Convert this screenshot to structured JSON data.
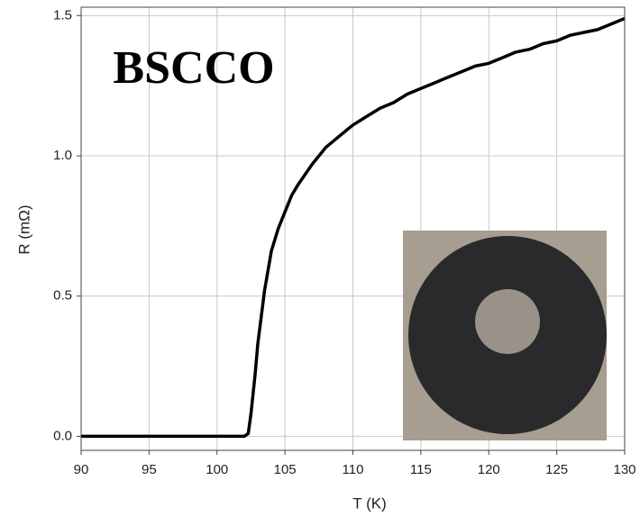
{
  "chart_data": {
    "type": "line",
    "annotation": "BSCCO",
    "x_label": "T (K)",
    "y_label": "R (mΩ)",
    "x": [
      90,
      92,
      94,
      96,
      98,
      100,
      102,
      102.3,
      102.5,
      102.8,
      103,
      103.5,
      104,
      104.5,
      105,
      105.5,
      106,
      107,
      108,
      109,
      110,
      111,
      112,
      113,
      114,
      115,
      116,
      117,
      118,
      119,
      120,
      121,
      122,
      123,
      124,
      125,
      126,
      127,
      128,
      129,
      130
    ],
    "series": [
      {
        "color": "#000000",
        "values": [
          0,
          0,
          0,
          0,
          0,
          0,
          0,
          0.01,
          0.08,
          0.22,
          0.33,
          0.52,
          0.66,
          0.74,
          0.8,
          0.86,
          0.9,
          0.97,
          1.03,
          1.07,
          1.11,
          1.14,
          1.17,
          1.19,
          1.22,
          1.24,
          1.26,
          1.28,
          1.3,
          1.32,
          1.33,
          1.35,
          1.37,
          1.38,
          1.4,
          1.41,
          1.43,
          1.44,
          1.45,
          1.47,
          1.49
        ]
      }
    ],
    "xlim": [
      90,
      130
    ],
    "xticks": [
      90,
      95,
      100,
      105,
      110,
      115,
      120,
      125,
      130
    ],
    "ylim": [
      -0.05,
      1.53
    ],
    "yticks": [
      {
        "value": 0,
        "label": "0.0"
      },
      {
        "value": 0.5,
        "label": "0.5"
      },
      {
        "value": 1,
        "label": "1.0"
      },
      {
        "value": 1.5,
        "label": "1.5"
      }
    ],
    "grid": true
  }
}
